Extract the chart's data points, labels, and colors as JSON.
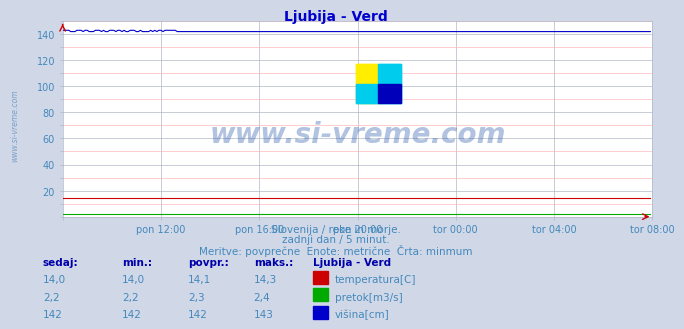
{
  "title": "Ljubija - Verd",
  "title_color": "#0000cc",
  "bg_color": "#d0d8e8",
  "plot_bg_color": "#ffffff",
  "grid_color_major": "#b0b8c8",
  "grid_color_minor": "#ffbbbb",
  "tick_label_color": "#4488bb",
  "text_color": "#4488bb",
  "header_color": "#0000aa",
  "text_lines": [
    "Slovenija / reke in morje.",
    "zadnji dan / 5 minut.",
    "Meritve: povprečne  Enote: metrične  Črta: minmum"
  ],
  "table_headers": [
    "sedaj:",
    "min.:",
    "povpr.:",
    "maks.:",
    "Ljubija - Verd"
  ],
  "table_rows": [
    [
      "14,0",
      "14,0",
      "14,1",
      "14,3",
      "temperatura[C]",
      "#cc0000"
    ],
    [
      "2,2",
      "2,2",
      "2,3",
      "2,4",
      "pretok[m3/s]",
      "#00aa00"
    ],
    [
      "142",
      "142",
      "142",
      "143",
      "višina[cm]",
      "#0000cc"
    ]
  ],
  "xlim": [
    0,
    288
  ],
  "ylim": [
    0,
    150
  ],
  "yticks": [
    20,
    40,
    60,
    80,
    100,
    120,
    140
  ],
  "xtick_labels": [
    "pon 12:00",
    "pon 16:00",
    "pon 20:00",
    "tor 00:00",
    "tor 04:00",
    "tor 08:00"
  ],
  "xtick_positions": [
    48,
    96,
    144,
    192,
    240,
    288
  ],
  "temperatura_value": 14.0,
  "pretok_value": 2.2,
  "visina_value": 142.0,
  "watermark": "www.si-vreme.com",
  "watermark_color": "#2255aa",
  "watermark_alpha": 0.35,
  "arrow_color": "#cc0000",
  "line_color_red": "#cc0000",
  "line_color_green": "#00aa00",
  "line_color_blue": "#0000cc",
  "side_label": "www.si-vreme.com",
  "side_label_color": "#5588bb"
}
